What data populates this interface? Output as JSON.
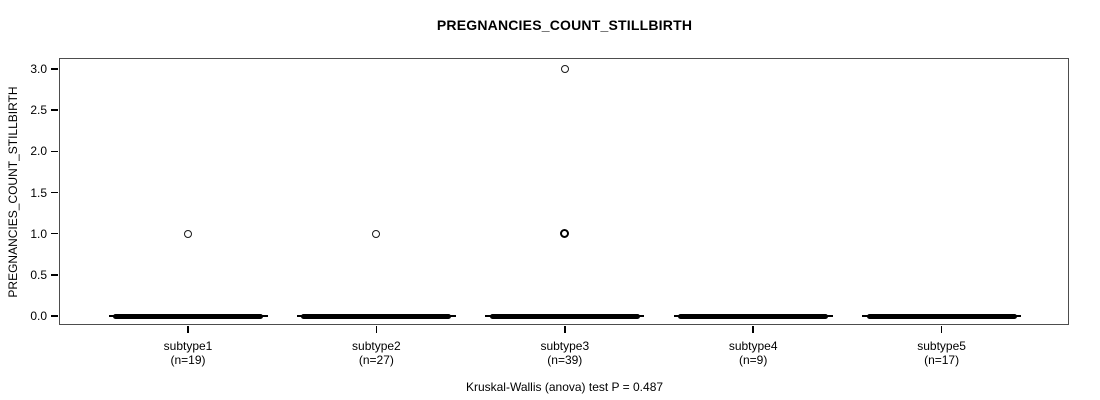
{
  "chart_data": {
    "type": "boxplot",
    "title": "PREGNANCIES_COUNT_STILLBIRTH",
    "ylabel": "PREGNANCIES_COUNT_STILLBIRTH",
    "xlabel": "",
    "ylim": [
      0,
      3
    ],
    "ytick_values": [
      0,
      0.5,
      1,
      1.5,
      2,
      2.5,
      3
    ],
    "ytick_labels": [
      "0.0",
      "0.5",
      "1.0",
      "1.5",
      "2.0",
      "2.5",
      "3.0"
    ],
    "grid": false,
    "legend": null,
    "annotation": "Kruskal-Wallis (anova) test P = 0.487",
    "groups": [
      {
        "label": "subtype1",
        "sublabel": "(n=19)",
        "n": 19,
        "median": 0,
        "q1": 0,
        "q3": 0,
        "whisker_low": 0,
        "whisker_high": 0,
        "outliers": [
          {
            "value": 1,
            "bold": false
          }
        ]
      },
      {
        "label": "subtype2",
        "sublabel": "(n=27)",
        "n": 27,
        "median": 0,
        "q1": 0,
        "q3": 0,
        "whisker_low": 0,
        "whisker_high": 0,
        "outliers": [
          {
            "value": 1,
            "bold": false
          }
        ]
      },
      {
        "label": "subtype3",
        "sublabel": "(n=39)",
        "n": 39,
        "median": 0,
        "q1": 0,
        "q3": 0,
        "whisker_low": 0,
        "whisker_high": 0,
        "outliers": [
          {
            "value": 3,
            "bold": false
          },
          {
            "value": 1,
            "bold": true
          }
        ]
      },
      {
        "label": "subtype4",
        "sublabel": "(n=9)",
        "n": 9,
        "median": 0,
        "q1": 0,
        "q3": 0,
        "whisker_low": 0,
        "whisker_high": 0,
        "outliers": []
      },
      {
        "label": "subtype5",
        "sublabel": "(n=17)",
        "n": 17,
        "median": 0,
        "q1": 0,
        "q3": 0,
        "whisker_low": 0,
        "whisker_high": 0,
        "outliers": []
      }
    ]
  }
}
